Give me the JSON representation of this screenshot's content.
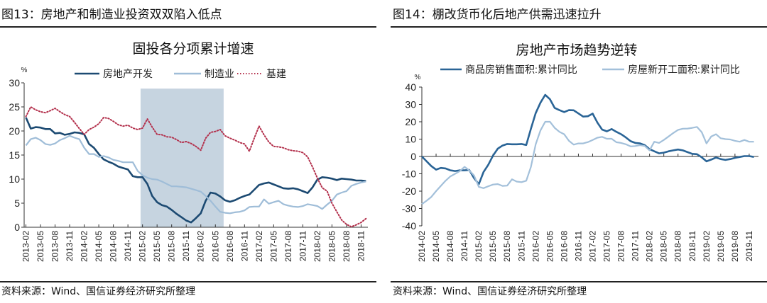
{
  "left": {
    "figure_title": "图13：房地产和制造业投资双双陷入低点",
    "source": "资料来源：Wind、国信证券经济研究所整理"
  },
  "right": {
    "figure_title": "图14：棚改货币化后地产供需迅速拉升",
    "source": "资料来源：Wind、国信证券经济研究所整理"
  },
  "chart_data": [
    {
      "type": "line",
      "title": "固投各分项累计增速",
      "ylabel": "%",
      "ylim": [
        0,
        30
      ],
      "yticks": [
        0,
        5,
        10,
        15,
        20,
        25,
        30
      ],
      "x_start": "2013-02",
      "x_step": "month",
      "xtick_labels": [
        "2013-02",
        "2013-05",
        "2013-08",
        "2013-11",
        "2014-02",
        "2014-05",
        "2014-08",
        "2014-11",
        "2015-02",
        "2015-05",
        "2015-08",
        "2015-11",
        "2016-02",
        "2016-05",
        "2016-08",
        "2016-11",
        "2017-02",
        "2017-05",
        "2017-08",
        "2017-11",
        "2018-02",
        "2018-05",
        "2018-08",
        "2018-11"
      ],
      "shaded_range": {
        "from_index": 23.6,
        "to_index": 40.7,
        "top_value": 28.8
      },
      "legend_position": "top",
      "series": [
        {
          "name": "房地产开发",
          "style": "solid",
          "color": "#1c4a72",
          "values": [
            22.8,
            20.5,
            20.8,
            20.7,
            20.4,
            20.4,
            19.5,
            19.6,
            19.2,
            19.4,
            19.7,
            19.6,
            19.3,
            17.3,
            16.5,
            15.2,
            14.1,
            13.6,
            13.2,
            12.6,
            12.3,
            12.0,
            10.6,
            10.4,
            10.4,
            9.0,
            6.5,
            5.2,
            4.6,
            4.3,
            3.6,
            2.8,
            2.1,
            1.4,
            1.0,
            1.9,
            2.9,
            5.5,
            7.2,
            7.0,
            6.4,
            5.6,
            5.3,
            5.6,
            6.1,
            6.5,
            6.8,
            7.8,
            8.8,
            9.1,
            9.3,
            8.9,
            8.5,
            8.1,
            8.0,
            8.1,
            7.9,
            7.5,
            7.1,
            8.3,
            9.9,
            10.4,
            10.3,
            10.1,
            9.8,
            10.1,
            10.0,
            9.9,
            9.7,
            9.7,
            9.6
          ]
        },
        {
          "name": "制造业",
          "style": "solid",
          "color": "#9fbdd8",
          "values": [
            17.0,
            18.3,
            18.6,
            18.1,
            17.3,
            17.1,
            17.4,
            18.1,
            18.5,
            19.0,
            18.6,
            18.3,
            16.5,
            15.2,
            15.2,
            14.6,
            14.8,
            14.5,
            14.0,
            13.8,
            13.5,
            13.5,
            13.5,
            11.7,
            10.8,
            10.3,
            10.0,
            9.9,
            9.5,
            9.0,
            8.5,
            8.5,
            8.4,
            8.3,
            8.0,
            7.7,
            7.4,
            6.5,
            5.5,
            4.3,
            3.2,
            3.0,
            2.9,
            3.1,
            3.2,
            3.5,
            4.2,
            4.3,
            4.3,
            5.8,
            4.9,
            5.2,
            5.5,
            4.8,
            4.5,
            4.3,
            4.2,
            4.4,
            4.8,
            4.6,
            4.4,
            3.8,
            4.7,
            5.5,
            6.8,
            7.2,
            7.5,
            8.6,
            9.0,
            9.3,
            9.5
          ]
        },
        {
          "name": "基建",
          "style": "dotted",
          "color": "#b3304c",
          "values": [
            23.0,
            25.0,
            24.4,
            24.0,
            23.8,
            24.2,
            24.7,
            24.0,
            23.4,
            23.0,
            21.8,
            20.5,
            19.3,
            20.3,
            20.8,
            21.5,
            22.8,
            22.6,
            22.0,
            21.3,
            21.0,
            21.2,
            20.6,
            20.3,
            20.6,
            22.5,
            20.8,
            19.3,
            19.2,
            18.8,
            18.7,
            18.2,
            17.6,
            17.8,
            17.4,
            16.8,
            16.0,
            18.5,
            19.7,
            19.9,
            20.3,
            19.0,
            18.5,
            18.1,
            17.6,
            17.3,
            15.8,
            18.5,
            21.0,
            19.2,
            17.7,
            16.8,
            16.7,
            16.5,
            16.1,
            15.9,
            15.8,
            15.5,
            14.6,
            12.5,
            10.2,
            8.2,
            7.5,
            5.0,
            3.2,
            1.5,
            0.6,
            0.1,
            0.5,
            1.0,
            1.8
          ]
        }
      ]
    },
    {
      "type": "line",
      "title": "房地产市场趋势逆转",
      "ylabel": "%",
      "ylim": [
        -40,
        40
      ],
      "yticks": [
        -40,
        -30,
        -20,
        -10,
        0,
        10,
        20,
        30,
        40
      ],
      "x_start": "2014-02",
      "x_step": "month",
      "xtick_labels": [
        "2014-02",
        "2014-05",
        "2014-08",
        "2014-11",
        "2015-02",
        "2015-05",
        "2015-08",
        "2015-11",
        "2016-02",
        "2016-05",
        "2016-08",
        "2016-11",
        "2017-02",
        "2017-05",
        "2017-08",
        "2017-11",
        "2018-02",
        "2018-05",
        "2018-08",
        "2018-11",
        "2019-02",
        "2019-05",
        "2019-08",
        "2019-11"
      ],
      "legend_position": "top",
      "series": [
        {
          "name": "商品房销售面积:累计同比",
          "style": "solid",
          "color": "#2a6496",
          "values": [
            0,
            -2.8,
            -5.6,
            -7.6,
            -6.6,
            -6.9,
            -8.0,
            -8.4,
            -8.0,
            -8.0,
            -7.8,
            -12.5,
            -16.0,
            -9.0,
            -4.8,
            0.5,
            4.5,
            6.3,
            7.2,
            7.0,
            7.0,
            7.2,
            6.6,
            16,
            25,
            31,
            35.5,
            33,
            28,
            26.7,
            25.6,
            26.7,
            26.6,
            24.8,
            23,
            23.2,
            24.7,
            19.5,
            15.5,
            14.5,
            15.8,
            14.2,
            12.8,
            11,
            8.8,
            7.8,
            7.5,
            6.5,
            4.2,
            3.0,
            1.8,
            2.2,
            3.0,
            3.5,
            4.0,
            3.5,
            2.5,
            1.5,
            1.3,
            -0.5,
            -2.8,
            -1.8,
            -0.6,
            -1.5,
            -2.0,
            -1.5,
            -0.8,
            -0.3,
            0.2,
            0.2,
            -0.3
          ]
        },
        {
          "name": "房屋新开工面积:累计同比",
          "style": "solid",
          "color": "#a3c0da",
          "values": [
            -27.5,
            -25.5,
            -23.3,
            -20,
            -17,
            -14,
            -11.5,
            -10,
            -8.5,
            -6,
            -8,
            -11,
            -17.5,
            -18.3,
            -17.2,
            -16.2,
            -15.9,
            -17,
            -16.8,
            -13.2,
            -14.5,
            -14.8,
            -14,
            -6,
            7,
            15,
            20,
            20,
            16.5,
            14.2,
            12.8,
            9,
            6.8,
            7.5,
            7.5,
            8.3,
            9.5,
            10.8,
            11.3,
            10.2,
            10.2,
            8.2,
            7.8,
            7,
            5.8,
            6,
            6.5,
            6,
            3.5,
            8.5,
            7.8,
            9.5,
            11.5,
            13.5,
            15.3,
            16,
            16.1,
            16.5,
            17,
            14,
            7.5,
            11.5,
            12.8,
            10.5,
            10,
            9.8,
            9,
            8.5,
            9.5,
            8.5,
            8.5
          ]
        }
      ]
    }
  ]
}
